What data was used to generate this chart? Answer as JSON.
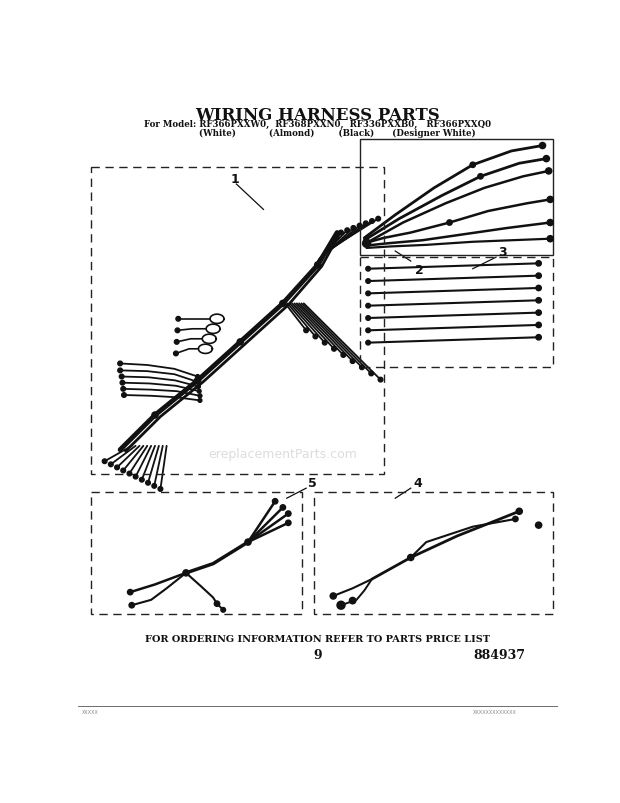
{
  "title": "WIRING HARNESS PARTS",
  "subtitle": "For Model: RF366PXXW0,  RF368PXXN0,  RF336PXXB0,   RF366PXXQ0",
  "subtitle2": "             (White)           (Almond)        (Black)      (Designer White)",
  "footer_text": "FOR ORDERING INFORMATION REFER TO PARTS PRICE LIST",
  "page_num": "9",
  "doc_num": "884937",
  "bg_color": "#ffffff",
  "line_color": "#111111",
  "watermark": "ereplacementParts.com"
}
